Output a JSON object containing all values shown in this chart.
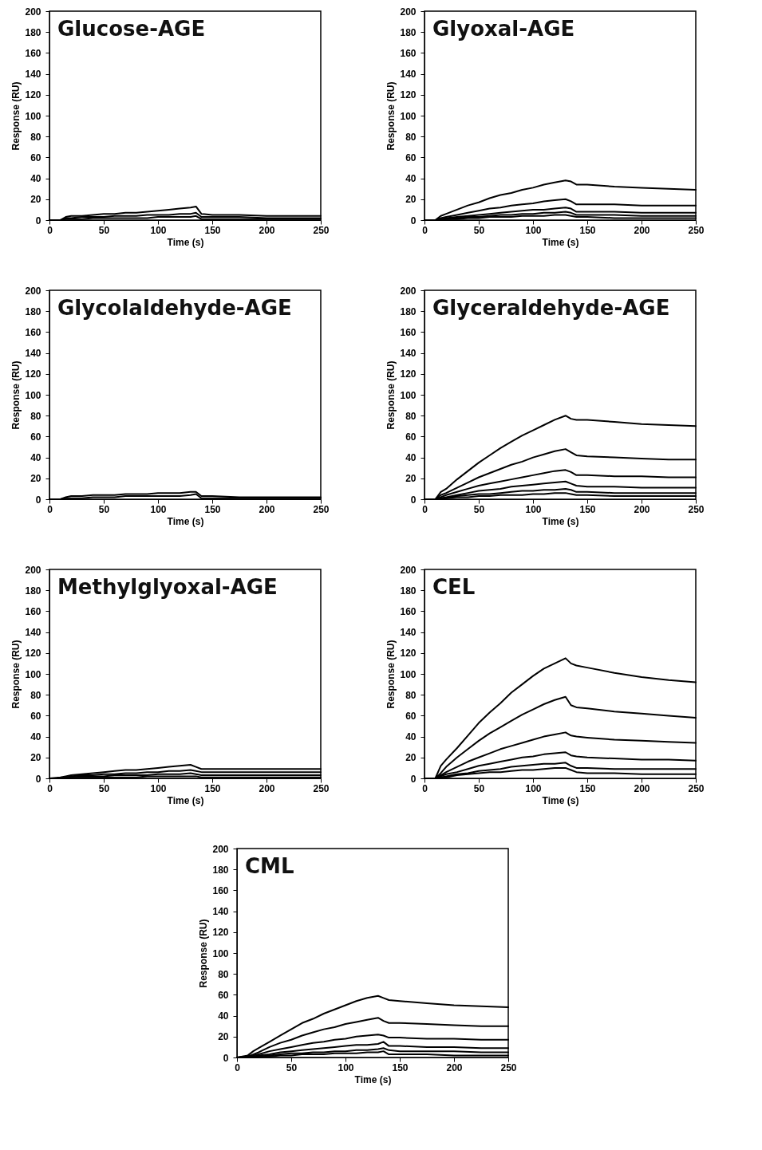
{
  "chart_data": [
    {
      "type": "line",
      "title": "Glucose-AGE",
      "xlabel": "Time (s)",
      "ylabel": "Response (RU)",
      "x": [
        0,
        10,
        15,
        20,
        30,
        40,
        50,
        60,
        70,
        80,
        90,
        100,
        110,
        120,
        130,
        135,
        140,
        150,
        175,
        200,
        225,
        250
      ],
      "xlim": [
        0,
        250
      ],
      "ylim": [
        0,
        200
      ],
      "xticks": [
        0,
        50,
        100,
        150,
        200,
        250
      ],
      "yticks": [
        0,
        20,
        40,
        60,
        80,
        100,
        120,
        140,
        160,
        180,
        200
      ],
      "grid": false,
      "marker": "none",
      "series": [
        {
          "color": "#000000",
          "values": [
            0,
            0,
            3,
            4,
            4,
            5,
            6,
            6,
            7,
            7,
            8,
            9,
            10,
            11,
            12,
            13,
            6,
            5,
            5,
            4,
            4,
            4
          ]
        },
        {
          "color": "#000000",
          "values": [
            0,
            0,
            2,
            2,
            3,
            3,
            3,
            4,
            4,
            4,
            5,
            5,
            5,
            6,
            6,
            7,
            3,
            3,
            3,
            2,
            2,
            2
          ]
        },
        {
          "color": "#000000",
          "values": [
            0,
            0,
            1,
            1,
            1,
            2,
            2,
            2,
            2,
            2,
            2,
            3,
            3,
            3,
            3,
            4,
            1,
            1,
            1,
            1,
            1,
            1
          ]
        }
      ]
    },
    {
      "type": "line",
      "title": "Glyoxal-AGE",
      "xlabel": "Time (s)",
      "ylabel": "Response (RU)",
      "x": [
        0,
        10,
        15,
        20,
        30,
        40,
        50,
        60,
        70,
        80,
        90,
        100,
        110,
        120,
        130,
        135,
        140,
        150,
        175,
        200,
        225,
        250
      ],
      "xlim": [
        0,
        250
      ],
      "ylim": [
        0,
        200
      ],
      "xticks": [
        0,
        50,
        100,
        150,
        200,
        250
      ],
      "yticks": [
        0,
        20,
        40,
        60,
        80,
        100,
        120,
        140,
        160,
        180,
        200
      ],
      "grid": false,
      "marker": "none",
      "series": [
        {
          "color": "#000000",
          "values": [
            0,
            0,
            4,
            6,
            10,
            14,
            17,
            21,
            24,
            26,
            29,
            31,
            34,
            36,
            38,
            37,
            34,
            34,
            32,
            31,
            30,
            29
          ]
        },
        {
          "color": "#000000",
          "values": [
            0,
            0,
            2,
            3,
            5,
            7,
            9,
            11,
            12,
            14,
            15,
            16,
            18,
            19,
            20,
            18,
            15,
            15,
            15,
            14,
            14,
            14
          ]
        },
        {
          "color": "#000000",
          "values": [
            0,
            0,
            1,
            2,
            3,
            4,
            5,
            6,
            7,
            8,
            9,
            10,
            10,
            11,
            12,
            11,
            8,
            8,
            8,
            7,
            7,
            7
          ]
        },
        {
          "color": "#000000",
          "values": [
            0,
            0,
            1,
            1,
            2,
            3,
            3,
            4,
            5,
            5,
            6,
            6,
            7,
            7,
            8,
            7,
            5,
            5,
            5,
            4,
            4,
            4
          ]
        },
        {
          "color": "#000000",
          "values": [
            0,
            0,
            0,
            1,
            1,
            2,
            2,
            3,
            3,
            3,
            4,
            4,
            4,
            5,
            5,
            4,
            3,
            3,
            2,
            2,
            2,
            2
          ]
        }
      ]
    },
    {
      "type": "line",
      "title": "Glycolaldehyde-AGE",
      "xlabel": "Time (s)",
      "ylabel": "Response (RU)",
      "x": [
        0,
        10,
        15,
        20,
        30,
        40,
        50,
        60,
        70,
        80,
        90,
        100,
        110,
        120,
        130,
        135,
        140,
        150,
        175,
        200,
        225,
        250
      ],
      "xlim": [
        0,
        250
      ],
      "ylim": [
        0,
        200
      ],
      "xticks": [
        0,
        50,
        100,
        150,
        200,
        250
      ],
      "yticks": [
        0,
        20,
        40,
        60,
        80,
        100,
        120,
        140,
        160,
        180,
        200
      ],
      "grid": false,
      "marker": "none",
      "series": [
        {
          "color": "#000000",
          "values": [
            0,
            0,
            2,
            3,
            3,
            4,
            4,
            4,
            5,
            5,
            5,
            6,
            6,
            6,
            7,
            7,
            3,
            3,
            2,
            2,
            2,
            2
          ]
        },
        {
          "color": "#000000",
          "values": [
            0,
            0,
            1,
            1,
            1,
            2,
            2,
            2,
            3,
            3,
            3,
            3,
            3,
            3,
            4,
            5,
            1,
            1,
            1,
            1,
            1,
            1
          ]
        }
      ]
    },
    {
      "type": "line",
      "title": "Glyceraldehyde-AGE",
      "xlabel": "Time (s)",
      "ylabel": "Response (RU)",
      "x": [
        0,
        10,
        15,
        20,
        30,
        40,
        50,
        60,
        70,
        80,
        90,
        100,
        110,
        120,
        130,
        135,
        140,
        150,
        175,
        200,
        225,
        250
      ],
      "xlim": [
        0,
        250
      ],
      "ylim": [
        0,
        200
      ],
      "xticks": [
        0,
        50,
        100,
        150,
        200,
        250
      ],
      "yticks": [
        0,
        20,
        40,
        60,
        80,
        100,
        120,
        140,
        160,
        180,
        200
      ],
      "grid": false,
      "marker": "none",
      "series": [
        {
          "color": "#000000",
          "values": [
            0,
            0,
            7,
            10,
            19,
            27,
            35,
            42,
            49,
            55,
            61,
            66,
            71,
            76,
            80,
            77,
            76,
            76,
            74,
            72,
            71,
            70
          ]
        },
        {
          "color": "#000000",
          "values": [
            0,
            0,
            4,
            6,
            11,
            16,
            21,
            25,
            29,
            33,
            36,
            40,
            43,
            46,
            48,
            45,
            42,
            41,
            40,
            39,
            38,
            38
          ]
        },
        {
          "color": "#000000",
          "values": [
            0,
            0,
            2,
            4,
            7,
            10,
            13,
            15,
            17,
            19,
            21,
            23,
            25,
            27,
            28,
            26,
            23,
            23,
            22,
            22,
            21,
            21
          ]
        },
        {
          "color": "#000000",
          "values": [
            0,
            0,
            1,
            2,
            4,
            6,
            8,
            9,
            10,
            12,
            13,
            14,
            15,
            16,
            17,
            15,
            13,
            12,
            12,
            11,
            11,
            11
          ]
        },
        {
          "color": "#000000",
          "values": [
            0,
            0,
            1,
            1,
            3,
            4,
            5,
            5,
            6,
            7,
            8,
            8,
            9,
            9,
            10,
            9,
            7,
            7,
            6,
            6,
            6,
            6
          ]
        },
        {
          "color": "#000000",
          "values": [
            0,
            0,
            0,
            1,
            2,
            2,
            3,
            3,
            4,
            4,
            4,
            5,
            5,
            6,
            6,
            5,
            4,
            4,
            3,
            3,
            3,
            3
          ]
        }
      ]
    },
    {
      "type": "line",
      "title": "Methylglyoxal-AGE",
      "xlabel": "Time (s)",
      "ylabel": "Response (RU)",
      "x": [
        0,
        10,
        15,
        20,
        30,
        40,
        50,
        60,
        70,
        80,
        90,
        100,
        110,
        120,
        130,
        135,
        140,
        150,
        175,
        200,
        225,
        250
      ],
      "xlim": [
        0,
        250
      ],
      "ylim": [
        0,
        200
      ],
      "xticks": [
        0,
        50,
        100,
        150,
        200,
        250
      ],
      "yticks": [
        0,
        20,
        40,
        60,
        80,
        100,
        120,
        140,
        160,
        180,
        200
      ],
      "grid": false,
      "marker": "none",
      "series": [
        {
          "color": "#000000",
          "values": [
            0,
            1,
            2,
            3,
            4,
            5,
            6,
            7,
            8,
            8,
            9,
            10,
            11,
            12,
            13,
            11,
            9,
            9,
            9,
            9,
            9,
            9
          ]
        },
        {
          "color": "#000000",
          "values": [
            0,
            0,
            1,
            2,
            3,
            3,
            4,
            4,
            5,
            5,
            6,
            6,
            7,
            7,
            8,
            7,
            6,
            6,
            6,
            6,
            6,
            6
          ]
        },
        {
          "color": "#000000",
          "values": [
            0,
            0,
            1,
            1,
            2,
            2,
            2,
            3,
            3,
            3,
            3,
            4,
            4,
            4,
            5,
            4,
            3,
            3,
            3,
            3,
            3,
            3
          ]
        },
        {
          "color": "#000000",
          "values": [
            0,
            0,
            0,
            1,
            1,
            1,
            1,
            1,
            1,
            1,
            2,
            2,
            2,
            2,
            2,
            2,
            1,
            1,
            1,
            1,
            1,
            1
          ]
        }
      ]
    },
    {
      "type": "line",
      "title": "CEL",
      "xlabel": "Time (s)",
      "ylabel": "Response (RU)",
      "x": [
        0,
        10,
        15,
        20,
        30,
        40,
        50,
        60,
        70,
        80,
        90,
        100,
        110,
        120,
        130,
        135,
        140,
        150,
        175,
        200,
        225,
        250
      ],
      "xlim": [
        0,
        250
      ],
      "ylim": [
        0,
        200
      ],
      "xticks": [
        0,
        50,
        100,
        150,
        200,
        250
      ],
      "yticks": [
        0,
        20,
        40,
        60,
        80,
        100,
        120,
        140,
        160,
        180,
        200
      ],
      "grid": false,
      "marker": "none",
      "series": [
        {
          "color": "#000000",
          "values": [
            0,
            0,
            12,
            18,
            29,
            41,
            53,
            63,
            72,
            82,
            90,
            98,
            105,
            110,
            115,
            110,
            108,
            106,
            101,
            97,
            94,
            92
          ]
        },
        {
          "color": "#000000",
          "values": [
            0,
            0,
            5,
            11,
            20,
            28,
            36,
            43,
            49,
            55,
            61,
            66,
            71,
            75,
            78,
            70,
            68,
            67,
            64,
            62,
            60,
            58
          ]
        },
        {
          "color": "#000000",
          "values": [
            0,
            0,
            3,
            6,
            11,
            16,
            20,
            24,
            28,
            31,
            34,
            37,
            40,
            42,
            44,
            41,
            40,
            39,
            37,
            36,
            35,
            34
          ]
        },
        {
          "color": "#000000",
          "values": [
            0,
            0,
            2,
            4,
            6,
            9,
            12,
            14,
            16,
            18,
            20,
            21,
            23,
            24,
            25,
            22,
            21,
            20,
            19,
            18,
            18,
            17
          ]
        },
        {
          "color": "#000000",
          "values": [
            0,
            0,
            1,
            2,
            4,
            5,
            7,
            8,
            9,
            11,
            12,
            13,
            14,
            14,
            15,
            12,
            10,
            10,
            9,
            9,
            9,
            9
          ]
        },
        {
          "color": "#000000",
          "values": [
            0,
            0,
            1,
            1,
            3,
            4,
            5,
            6,
            6,
            7,
            8,
            8,
            9,
            10,
            10,
            8,
            6,
            5,
            5,
            4,
            4,
            4
          ]
        }
      ]
    },
    {
      "type": "line",
      "title": "CML",
      "xlabel": "Time (s)",
      "ylabel": "Response (RU)",
      "x": [
        0,
        10,
        15,
        20,
        30,
        40,
        50,
        60,
        70,
        80,
        90,
        100,
        110,
        120,
        130,
        135,
        140,
        150,
        175,
        200,
        225,
        250
      ],
      "xlim": [
        0,
        250
      ],
      "ylim": [
        0,
        200
      ],
      "xticks": [
        0,
        50,
        100,
        150,
        200,
        250
      ],
      "yticks": [
        0,
        20,
        40,
        60,
        80,
        100,
        120,
        140,
        160,
        180,
        200
      ],
      "grid": false,
      "marker": "none",
      "series": [
        {
          "color": "#000000",
          "values": [
            0,
            2,
            6,
            9,
            15,
            21,
            27,
            33,
            37,
            42,
            46,
            50,
            54,
            57,
            59,
            57,
            55,
            54,
            52,
            50,
            49,
            48
          ]
        },
        {
          "color": "#000000",
          "values": [
            0,
            1,
            3,
            5,
            10,
            14,
            17,
            21,
            24,
            27,
            29,
            32,
            34,
            36,
            38,
            35,
            33,
            33,
            32,
            31,
            30,
            30
          ]
        },
        {
          "color": "#000000",
          "values": [
            0,
            1,
            2,
            3,
            6,
            8,
            10,
            12,
            14,
            15,
            17,
            18,
            20,
            21,
            22,
            21,
            19,
            19,
            18,
            18,
            17,
            17
          ]
        },
        {
          "color": "#000000",
          "values": [
            0,
            0,
            1,
            2,
            3,
            5,
            6,
            7,
            8,
            9,
            10,
            11,
            12,
            12,
            13,
            15,
            11,
            11,
            10,
            10,
            9,
            9
          ]
        },
        {
          "color": "#000000",
          "values": [
            0,
            0,
            1,
            1,
            2,
            3,
            4,
            4,
            5,
            5,
            6,
            6,
            7,
            7,
            8,
            9,
            7,
            6,
            6,
            6,
            5,
            5
          ]
        },
        {
          "color": "#000000",
          "values": [
            0,
            0,
            0,
            1,
            1,
            2,
            2,
            3,
            3,
            3,
            4,
            4,
            4,
            5,
            5,
            6,
            3,
            3,
            3,
            2,
            2,
            2
          ]
        }
      ]
    }
  ]
}
